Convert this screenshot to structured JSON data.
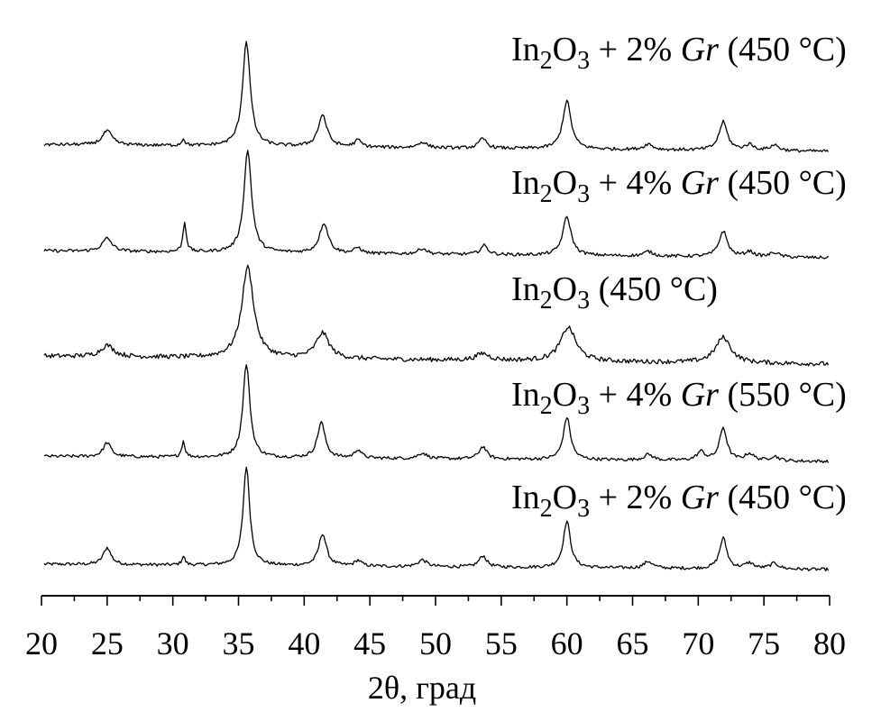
{
  "chart_data": {
    "type": "line",
    "title": "",
    "xlabel": "2θ, град",
    "ylabel": "",
    "xlim": [
      20,
      80
    ],
    "x_ticks": [
      "20",
      "25",
      "30",
      "35",
      "40",
      "45",
      "50",
      "55",
      "60",
      "65",
      "70",
      "75",
      "80"
    ],
    "grid": false,
    "legend": "labels above each trace, right side",
    "series": [
      {
        "name": "In₂O₃ + 2% Gr (450 °C)",
        "label_parts": [
          "In",
          "2",
          "O",
          "3",
          " + 2% ",
          "Gr",
          " (450 °C)"
        ],
        "baseline_start": 0.95,
        "baseline_end": 0.0,
        "noise": 0.55,
        "peaks": [
          [
            25.0,
            3.0,
            0.35
          ],
          [
            30.8,
            1.5,
            0.15
          ],
          [
            35.6,
            17.5,
            0.3
          ],
          [
            41.4,
            5.7,
            0.35
          ],
          [
            44.1,
            1.0,
            0.3
          ],
          [
            49.0,
            1.2,
            0.4
          ],
          [
            53.6,
            2.0,
            0.35
          ],
          [
            60.0,
            8.2,
            0.33
          ],
          [
            66.2,
            1.2,
            0.4
          ],
          [
            71.9,
            5.4,
            0.33
          ],
          [
            73.9,
            1.0,
            0.4
          ],
          [
            75.8,
            1.0,
            0.4
          ]
        ]
      },
      {
        "name": "In₂O₃ + 4% Gr (550 °C)",
        "label_parts": [
          "In",
          "2",
          "O",
          "3",
          " + 4% ",
          "Gr",
          " (550 °C)"
        ],
        "baseline_start": 0.9,
        "baseline_end": 0.0,
        "noise": 0.55,
        "peaks": [
          [
            25.0,
            2.5,
            0.35
          ],
          [
            30.8,
            2.8,
            0.15
          ],
          [
            35.6,
            16.5,
            0.32
          ],
          [
            41.3,
            6.3,
            0.35
          ],
          [
            44.1,
            1.5,
            0.3
          ],
          [
            49.0,
            1.0,
            0.4
          ],
          [
            53.6,
            2.2,
            0.35
          ],
          [
            60.0,
            7.5,
            0.33
          ],
          [
            66.2,
            1.0,
            0.4
          ],
          [
            70.2,
            1.5,
            0.35
          ],
          [
            71.9,
            5.8,
            0.33
          ],
          [
            73.9,
            1.2,
            0.4
          ],
          [
            75.8,
            0.8,
            0.4
          ]
        ]
      },
      {
        "name": "In₂O₃ (450 °C)",
        "label_parts": [
          "In",
          "2",
          "O",
          "3",
          " (450 °C)",
          "",
          ""
        ],
        "baseline_start": 1.4,
        "baseline_end": 0.0,
        "noise": 0.8,
        "peaks": [
          [
            25.0,
            2.0,
            0.6
          ],
          [
            35.7,
            16.0,
            0.55
          ],
          [
            41.4,
            4.5,
            0.6
          ],
          [
            53.6,
            1.2,
            0.6
          ],
          [
            60.1,
            6.0,
            0.7
          ],
          [
            71.9,
            4.5,
            0.7
          ]
        ]
      },
      {
        "name": "In₂O₃ + 4% Gr (450 °C)",
        "label_parts": [
          "In",
          "2",
          "O",
          "3",
          " + 4% ",
          "Gr",
          " (450 °C)"
        ],
        "baseline_start": 1.2,
        "baseline_end": 0.0,
        "noise": 0.55,
        "peaks": [
          [
            25.0,
            2.3,
            0.45
          ],
          [
            30.9,
            5.3,
            0.15
          ],
          [
            35.7,
            18.0,
            0.35
          ],
          [
            41.5,
            5.3,
            0.4
          ],
          [
            44.1,
            1.0,
            0.3
          ],
          [
            49.0,
            1.0,
            0.4
          ],
          [
            53.7,
            1.6,
            0.35
          ],
          [
            60.0,
            6.8,
            0.38
          ],
          [
            66.2,
            0.8,
            0.4
          ],
          [
            71.9,
            4.5,
            0.38
          ],
          [
            73.9,
            0.9,
            0.4
          ],
          [
            75.8,
            0.8,
            0.4
          ]
        ]
      },
      {
        "name": "In₂O₃ + 2% Gr (450 °C)",
        "label_parts": [
          "In",
          "2",
          "O",
          "3",
          " + 2% ",
          "Gr",
          " (450 °C)"
        ],
        "baseline_start": 1.2,
        "baseline_end": 0.0,
        "noise": 0.55,
        "peaks": [
          [
            25.0,
            2.5,
            0.45
          ],
          [
            30.8,
            1.2,
            0.15
          ],
          [
            35.6,
            18.5,
            0.35
          ],
          [
            41.4,
            5.6,
            0.4
          ],
          [
            44.1,
            1.2,
            0.3
          ],
          [
            49.0,
            1.0,
            0.4
          ],
          [
            53.6,
            1.7,
            0.35
          ],
          [
            60.0,
            8.5,
            0.38
          ],
          [
            66.2,
            1.0,
            0.4
          ],
          [
            71.9,
            5.0,
            0.38
          ],
          [
            73.9,
            1.0,
            0.4
          ],
          [
            75.8,
            1.0,
            0.4
          ]
        ]
      }
    ]
  }
}
